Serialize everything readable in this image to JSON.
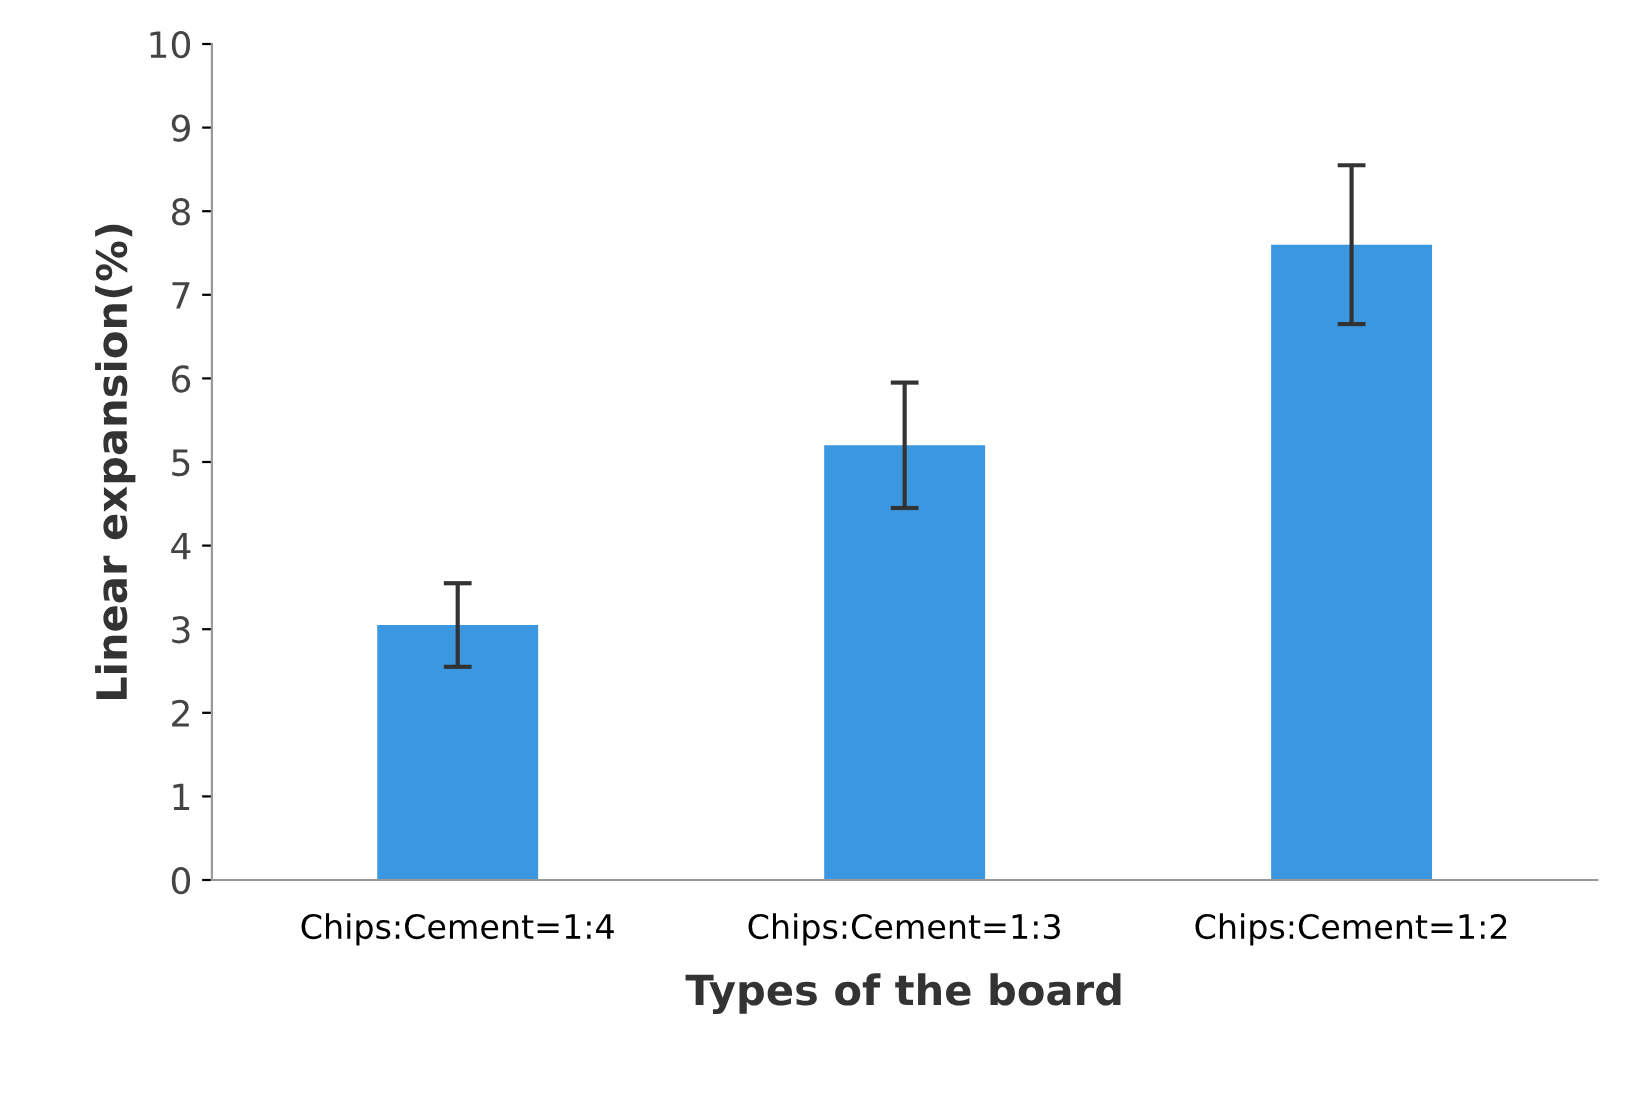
{
  "chart_data": {
    "type": "bar",
    "xlabel": "Types of the board",
    "ylabel": "Linear expansion(%)",
    "categories": [
      "Chips:Cement=1:4",
      "Chips:Cement=1:3",
      "Chips:Cement=1:2"
    ],
    "values": [
      3.05,
      5.2,
      7.6
    ],
    "errors": [
      0.5,
      0.75,
      0.95
    ],
    "color": "#3a97e0",
    "ylim": [
      0,
      10
    ],
    "yticks": [
      0,
      1,
      2,
      3,
      4,
      5,
      6,
      7,
      8,
      9,
      10
    ],
    "grid": false,
    "legend": false
  }
}
